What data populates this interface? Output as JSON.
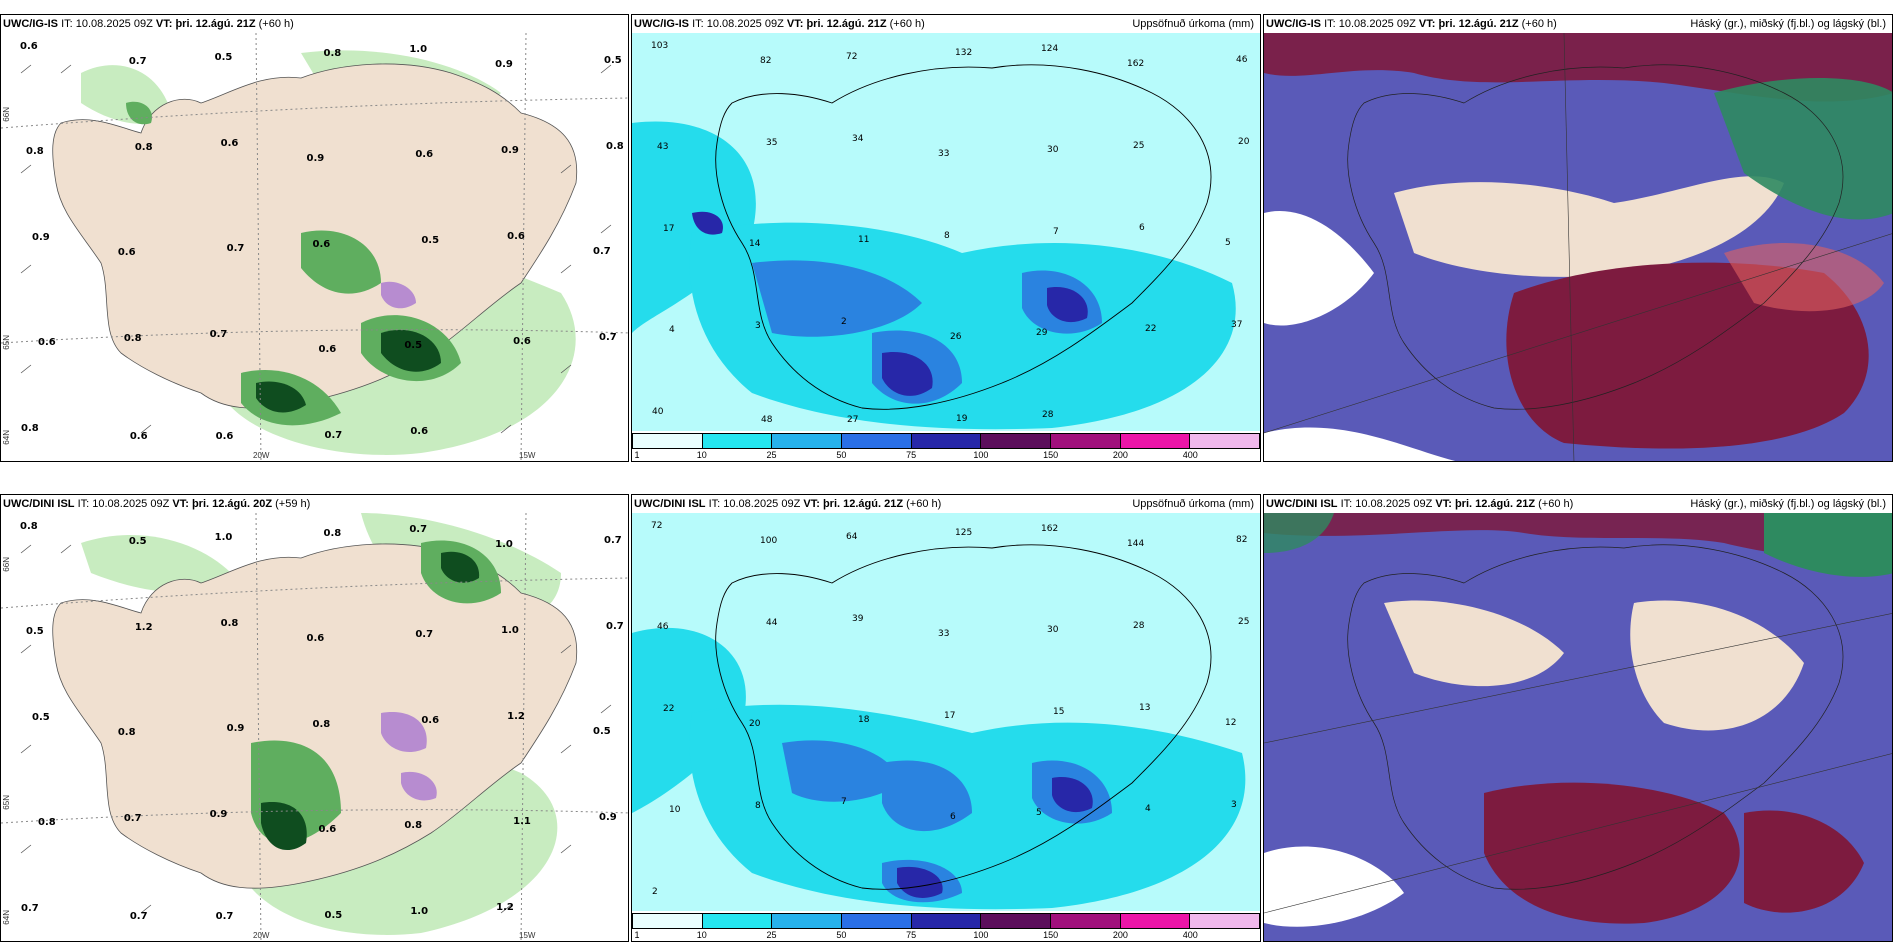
{
  "colors": {
    "land": "#f0e0d0",
    "light_green": "#c8ecc0",
    "mid_green": "#5fae5f",
    "dark_green": "#0f4d1f",
    "purple": "#b78cd0",
    "precip_bg": "#b7fbfb",
    "precip_mid": "#25dcec",
    "precip_blue": "#2a83e0",
    "precip_dark": "#2727a8",
    "precip_purple": "#6e1b7c",
    "cloud_high": "#7d1b3f",
    "cloud_mid": "#5a5ab8",
    "cloud_low_edge": "#2d52e0",
    "cloud_green": "#2e8a60"
  },
  "panels": {
    "top_left": {
      "model": "UWC/IG-IS",
      "it_label": "IT:",
      "it_value": "10.08.2025 09Z",
      "vt_label": "VT:",
      "vt_value": "þri. 12.ágú. 21Z",
      "lead": "(+60 h)",
      "title_right": "",
      "lat_labels": [
        "66N",
        "65N",
        "64N"
      ],
      "lon_labels": [
        "20W",
        "15W"
      ],
      "values": [
        "0.6",
        "0.7",
        "0.5",
        "0.8",
        "1.0",
        "0.9",
        "0.5",
        "0.8",
        "0.8",
        "0.6",
        "0.9",
        "0.6",
        "0.9",
        "0.8",
        "0.9",
        "0.6",
        "0.7",
        "0.6",
        "0.5",
        "0.6",
        "0.7",
        "0.6",
        "0.8",
        "0.7",
        "0.6",
        "0.5",
        "0.6",
        "0.7",
        "0.8",
        "0.6",
        "0.6",
        "0.7",
        "0.6"
      ]
    },
    "top_mid": {
      "model": "UWC/IG-IS",
      "it_label": "IT:",
      "it_value": "10.08.2025 09Z",
      "vt_label": "VT:",
      "vt_value": "þri. 12.ágú. 21Z",
      "lead": "(+60 h)",
      "title_right": "Uppsöfnuð úrkoma (mm)",
      "legend_ticks": [
        "1",
        "10",
        "25",
        "50",
        "75",
        "100",
        "150",
        "200",
        "400"
      ],
      "values": [
        "103",
        "82",
        "72",
        "132",
        "124",
        "162",
        "46",
        "43",
        "35",
        "34",
        "33",
        "30",
        "25",
        "20",
        "17",
        "14",
        "11",
        "8",
        "7",
        "6",
        "5",
        "4",
        "3",
        "2",
        "26",
        "29",
        "22",
        "37",
        "40",
        "48",
        "27",
        "19",
        "28"
      ]
    },
    "top_right": {
      "model": "UWC/IG-IS",
      "it_label": "IT:",
      "it_value": "10.08.2025 09Z",
      "vt_label": "VT:",
      "vt_value": "þri. 12.ágú. 21Z",
      "lead": "(+60 h)",
      "title_right": "Háský (gr.), miðský (fj.bl.) og lágský (bl.)"
    },
    "bottom_left": {
      "model": "UWC/DINI ISL",
      "it_label": "IT:",
      "it_value": "10.08.2025 09Z",
      "vt_label": "VT:",
      "vt_value": "þri. 12.ágú. 20Z",
      "lead": "(+59 h)",
      "title_right": "",
      "lat_labels": [
        "66N",
        "65N",
        "64N"
      ],
      "lon_labels": [
        "20W",
        "15W"
      ],
      "values": [
        "0.8",
        "0.5",
        "1.0",
        "0.8",
        "0.7",
        "1.0",
        "0.7",
        "0.5",
        "1.2",
        "0.8",
        "0.6",
        "0.7",
        "1.0",
        "0.7",
        "0.5",
        "0.8",
        "0.9",
        "0.8",
        "0.6",
        "1.2",
        "0.5",
        "0.8",
        "0.7",
        "0.9",
        "0.6",
        "0.8",
        "1.1",
        "0.9",
        "0.7",
        "0.7",
        "0.7",
        "0.5",
        "1.0",
        "1.2"
      ]
    },
    "bottom_mid": {
      "model": "UWC/DINI ISL",
      "it_label": "IT:",
      "it_value": "10.08.2025 09Z",
      "vt_label": "VT:",
      "vt_value": "þri. 12.ágú. 21Z",
      "lead": "(+60 h)",
      "title_right": "Uppsöfnuð úrkoma (mm)",
      "legend_ticks": [
        "1",
        "10",
        "25",
        "50",
        "75",
        "100",
        "150",
        "200",
        "400"
      ],
      "values": [
        "72",
        "100",
        "64",
        "125",
        "162",
        "144",
        "82",
        "46",
        "44",
        "39",
        "33",
        "30",
        "28",
        "25",
        "22",
        "20",
        "18",
        "17",
        "15",
        "13",
        "12",
        "10",
        "8",
        "7",
        "6",
        "5",
        "4",
        "3",
        "2"
      ]
    },
    "bottom_right": {
      "model": "UWC/DINI ISL",
      "it_label": "IT:",
      "it_value": "10.08.2025 09Z",
      "vt_label": "VT:",
      "vt_value": "þri. 12.ágú. 21Z",
      "lead": "(+60 h)",
      "title_right": "Háský (gr.), miðský (fj.bl.) og lágský (bl.)"
    }
  }
}
